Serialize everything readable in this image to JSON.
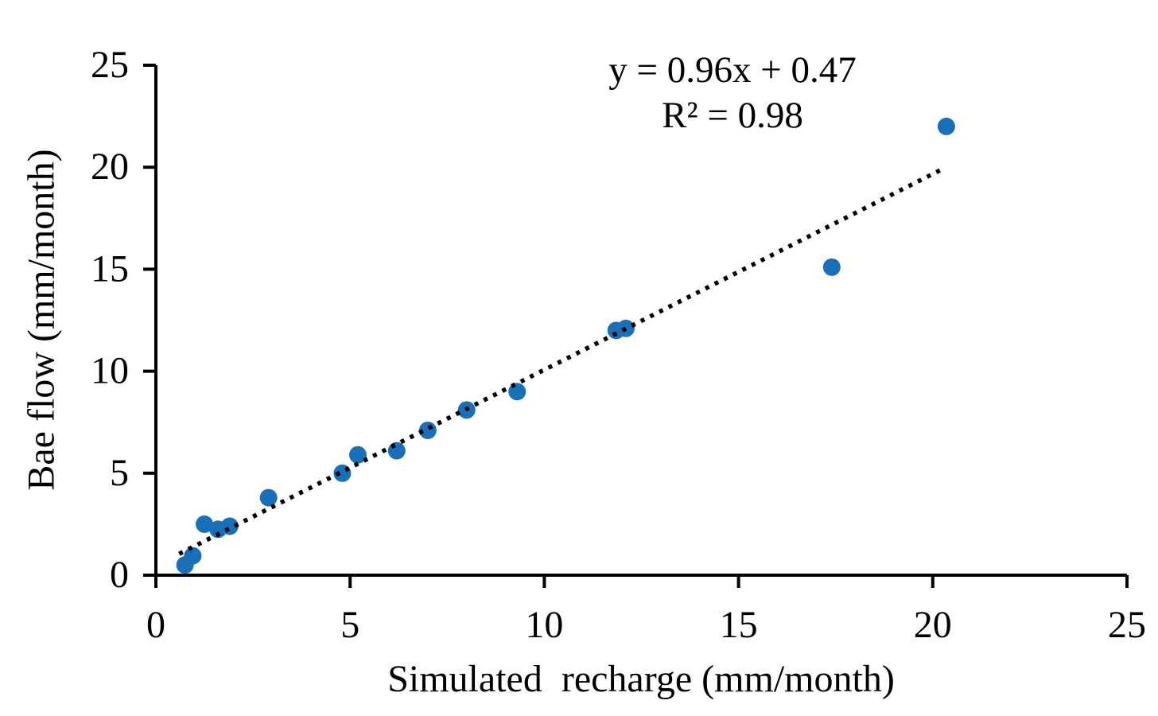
{
  "chart_data": {
    "type": "scatter",
    "title": "",
    "xlabel": "Simulated  recharge (mm/month)",
    "ylabel": "Bae flow (mm/month)",
    "xlim": [
      0,
      25
    ],
    "ylim": [
      0,
      25
    ],
    "x_ticks": [
      0,
      5,
      10,
      15,
      20,
      25
    ],
    "y_ticks": [
      0,
      5,
      10,
      15,
      20,
      25
    ],
    "grid": false,
    "legend": "none",
    "marker_color": "#1a70b8",
    "axis_color": "#000000",
    "points": [
      {
        "x": 0.75,
        "y": 0.5
      },
      {
        "x": 0.95,
        "y": 0.95
      },
      {
        "x": 1.25,
        "y": 2.5
      },
      {
        "x": 1.6,
        "y": 2.25
      },
      {
        "x": 1.9,
        "y": 2.4
      },
      {
        "x": 2.9,
        "y": 3.8
      },
      {
        "x": 4.8,
        "y": 5.0
      },
      {
        "x": 5.2,
        "y": 5.9
      },
      {
        "x": 6.2,
        "y": 6.1
      },
      {
        "x": 7.0,
        "y": 7.1
      },
      {
        "x": 8.0,
        "y": 8.1
      },
      {
        "x": 9.3,
        "y": 9.0
      },
      {
        "x": 11.85,
        "y": 12.0
      },
      {
        "x": 12.1,
        "y": 12.1
      },
      {
        "x": 17.4,
        "y": 15.1
      },
      {
        "x": 20.35,
        "y": 22.0
      }
    ],
    "trendline": {
      "slope": 0.96,
      "intercept": 0.47,
      "x_start": 0.6,
      "x_end": 20.3,
      "style": "dotted",
      "color": "#000000"
    },
    "annotation": {
      "equation": "y = 0.96x + 0.47",
      "r_squared": "R² = 0.98"
    }
  }
}
